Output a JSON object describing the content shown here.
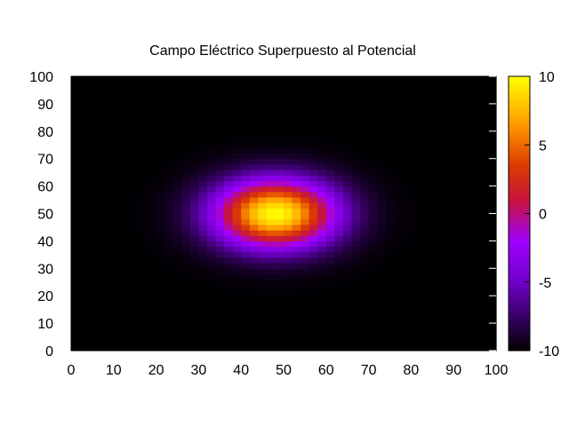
{
  "chart_data": {
    "type": "heatmap",
    "title": "Campo Eléctrico Superpuesto al Potencial",
    "xlabel": "",
    "ylabel": "",
    "xlim": [
      0,
      100
    ],
    "ylim": [
      0,
      100
    ],
    "x_ticks": [
      0,
      10,
      20,
      30,
      40,
      50,
      60,
      70,
      80,
      90,
      100
    ],
    "y_ticks": [
      0,
      10,
      20,
      30,
      40,
      50,
      60,
      70,
      80,
      90,
      100
    ],
    "colorbar": {
      "range": [
        -10,
        10
      ],
      "ticks": [
        10,
        5,
        0,
        -5,
        -10
      ],
      "palette": "black-purple-red-orange-yellow"
    },
    "field": {
      "description_center": [
        48,
        50
      ],
      "peak_value": 10,
      "background_value": -10,
      "spread_x": 15,
      "spread_y": 13,
      "grid_step": 2
    },
    "grid": false,
    "legend": "none"
  },
  "colors": {
    "background": "#000000",
    "low": "#000000",
    "mid_low": "#7a00ff",
    "mid": "#cc2200",
    "mid_high": "#ff9000",
    "high": "#ffff00"
  }
}
